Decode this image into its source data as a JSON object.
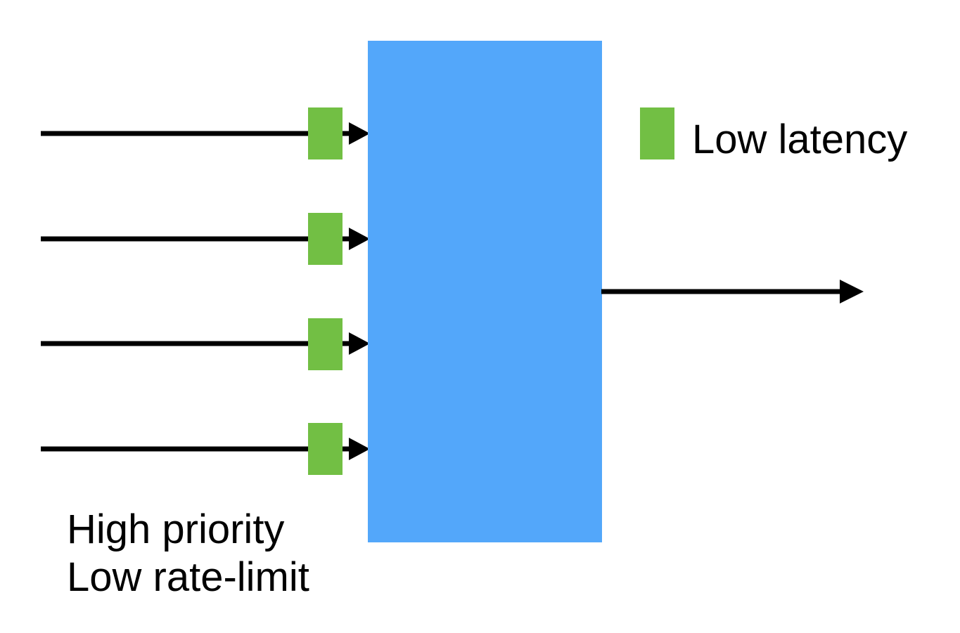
{
  "legend": {
    "label": "Low latency",
    "color": "#72bf44"
  },
  "inputs_label": {
    "line1": "High priority",
    "line2": "Low rate-limit"
  },
  "colors": {
    "scheduler": "#53a7fa",
    "packet": "#72bf44",
    "arrow": "#000000"
  },
  "input_count": 4
}
